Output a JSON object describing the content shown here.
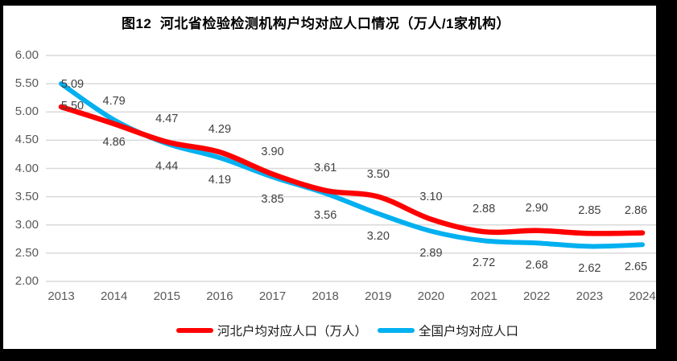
{
  "figure": {
    "title": "图12  河北省检验检测机构户均对应人口情况（万人/1家机构）"
  },
  "chart_data": {
    "type": "line",
    "title": "图12  河北省检验检测机构户均对应人口情况（万人/1家机构）",
    "xlabel": "",
    "ylabel": "",
    "categories": [
      "2013",
      "2014",
      "2015",
      "2016",
      "2017",
      "2018",
      "2019",
      "2020",
      "2021",
      "2022",
      "2023",
      "2024"
    ],
    "series": [
      {
        "name": "河北户均对应人口（万人）",
        "color": "#FF0000",
        "values": [
          5.09,
          4.79,
          4.47,
          4.29,
          3.9,
          3.61,
          3.5,
          3.1,
          2.88,
          2.9,
          2.85,
          2.86
        ],
        "label_position": "above"
      },
      {
        "name": "全国户均对应人口",
        "color": "#00B0F0",
        "values": [
          5.5,
          4.86,
          4.44,
          4.19,
          3.85,
          3.56,
          3.2,
          2.89,
          2.72,
          2.68,
          2.62,
          2.65
        ],
        "label_position": "below"
      }
    ],
    "y_axis": {
      "min": 2.0,
      "max": 6.0,
      "step": 0.5,
      "tick_labels": [
        "6.00",
        "5.50",
        "5.00",
        "4.50",
        "4.00",
        "3.50",
        "3.00",
        "2.50",
        "2.00"
      ]
    },
    "grid": true,
    "smoothed_lines": true,
    "data_labels": true,
    "legend_position": "bottom",
    "colors": {
      "grid": "#D9D9D9",
      "tick_text": "#595959",
      "data_label_text": "#404040",
      "title_text": "#000000",
      "frame": "#000000",
      "background": "#FFFFFF"
    }
  },
  "legend": {
    "items": [
      {
        "label": "河北户均对应人口（万人）",
        "color": "#FF0000"
      },
      {
        "label": "全国户均对应人口",
        "color": "#00B0F0"
      }
    ]
  }
}
